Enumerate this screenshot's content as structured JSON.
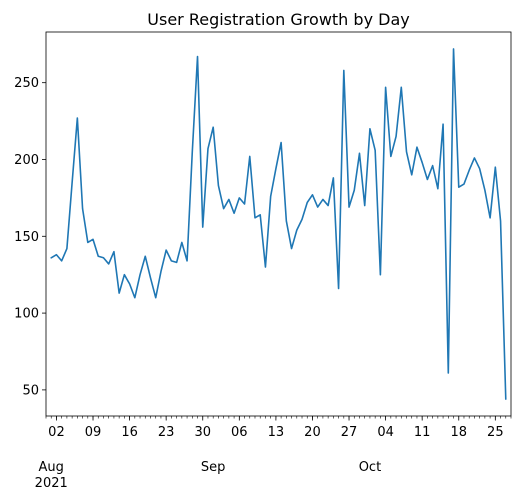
{
  "chart_data": {
    "type": "line",
    "title": "User Registration Growth by Day",
    "xlabel": "",
    "ylabel": "",
    "start_date": "2021-08-01",
    "x_range": [
      "2021-07-31",
      "2021-10-28"
    ],
    "ylim": [
      33,
      283
    ],
    "grid": false,
    "legend": "none",
    "series_color": "#1f77b4",
    "y_ticks": [
      50,
      100,
      150,
      200,
      250
    ],
    "x_day_ticks": [
      "02",
      "09",
      "16",
      "23",
      "30",
      "06",
      "13",
      "20",
      "27",
      "04",
      "11",
      "18",
      "25"
    ],
    "x_month_labels": [
      {
        "month": "Aug",
        "year": "2021"
      },
      {
        "month": "Sep",
        "year": ""
      },
      {
        "month": "Oct",
        "year": ""
      }
    ],
    "values": [
      136,
      138,
      134,
      142,
      185,
      227,
      168,
      146,
      148,
      137,
      136,
      132,
      140,
      113,
      125,
      119,
      110,
      125,
      137,
      123,
      110,
      127,
      141,
      134,
      133,
      146,
      134,
      205,
      267,
      156,
      207,
      221,
      183,
      168,
      174,
      165,
      175,
      171,
      202,
      162,
      164,
      130,
      176,
      194,
      211,
      160,
      142,
      154,
      161,
      172,
      177,
      169,
      174,
      170,
      188,
      116,
      258,
      169,
      180,
      204,
      170,
      220,
      206,
      125,
      247,
      202,
      215,
      247,
      205,
      190,
      208,
      198,
      187,
      196,
      181,
      223,
      61,
      272,
      182,
      184,
      193,
      201,
      194,
      180,
      162,
      195,
      160,
      44
    ]
  }
}
